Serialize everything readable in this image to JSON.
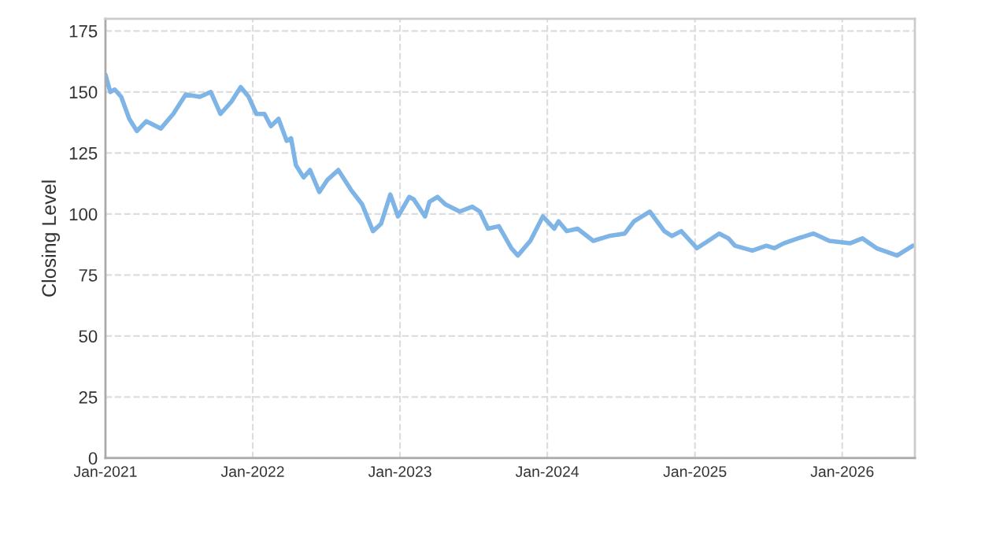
{
  "chart_data": {
    "type": "line",
    "ylabel": "Closing Level",
    "x": [
      "2021-01-01",
      "2021-01-13",
      "2021-01-24",
      "2021-02-09",
      "2021-03-01",
      "2021-03-20",
      "2021-04-12",
      "2021-05-18",
      "2021-06-18",
      "2021-07-19",
      "2021-08-23",
      "2021-09-19",
      "2021-10-13",
      "2021-11-09",
      "2021-12-02",
      "2021-12-22",
      "2022-01-10",
      "2022-01-30",
      "2022-02-15",
      "2022-03-06",
      "2022-03-26",
      "2022-04-06",
      "2022-04-18",
      "2022-05-07",
      "2022-05-23",
      "2022-06-15",
      "2022-07-05",
      "2022-08-01",
      "2022-09-01",
      "2022-09-29",
      "2022-10-26",
      "2022-11-15",
      "2022-12-08",
      "2022-12-27",
      "2023-01-24",
      "2023-02-04",
      "2023-03-04",
      "2023-03-15",
      "2023-04-04",
      "2023-04-23",
      "2023-05-29",
      "2023-06-29",
      "2023-07-18",
      "2023-08-07",
      "2023-09-03",
      "2023-10-04",
      "2023-10-20",
      "2023-11-20",
      "2023-12-21",
      "2024-01-18",
      "2024-01-29",
      "2024-02-18",
      "2024-03-16",
      "2024-04-24",
      "2024-06-02",
      "2024-07-11",
      "2024-08-03",
      "2024-09-11",
      "2024-10-17",
      "2024-11-05",
      "2024-11-28",
      "2025-01-06",
      "2025-02-03",
      "2025-03-02",
      "2025-03-25",
      "2025-04-10",
      "2025-05-23",
      "2025-06-27",
      "2025-07-17",
      "2025-08-09",
      "2025-09-13",
      "2025-10-22",
      "2025-11-30",
      "2026-01-20",
      "2026-02-20",
      "2026-03-27",
      "2026-05-17",
      "2026-06-25"
    ],
    "series": [
      {
        "color": "#7eb4e6",
        "values": [
          157,
          150,
          151,
          148,
          139,
          134,
          138,
          135,
          141,
          149,
          148,
          150,
          141,
          146,
          152,
          148,
          141,
          141,
          136,
          139,
          130,
          131,
          120,
          115,
          118,
          109,
          114,
          118,
          110,
          104,
          93,
          96,
          108,
          99,
          107,
          106,
          99,
          105,
          107,
          104,
          101,
          103,
          101,
          94,
          95,
          86,
          83,
          89,
          99,
          94,
          97,
          93,
          94,
          89,
          91,
          92,
          97,
          101,
          93,
          91,
          93,
          86,
          89,
          92,
          90,
          87,
          85,
          87,
          86,
          88,
          90,
          92,
          89,
          88,
          90,
          86,
          83,
          87
        ]
      }
    ],
    "xlim": [
      "2021-01-01",
      "2026-06-30"
    ],
    "xticks": [
      {
        "value": "2021-01-01",
        "label": "Jan-2021"
      },
      {
        "value": "2022-01-01",
        "label": "Jan-2022"
      },
      {
        "value": "2023-01-01",
        "label": "Jan-2023"
      },
      {
        "value": "2024-01-01",
        "label": "Jan-2024"
      },
      {
        "value": "2025-01-01",
        "label": "Jan-2025"
      },
      {
        "value": "2026-01-01",
        "label": "Jan-2026"
      }
    ],
    "ylim": [
      0,
      180
    ],
    "yticks": [
      0,
      25,
      50,
      75,
      100,
      125,
      150,
      175
    ],
    "grid": true,
    "line_style": "solid"
  }
}
